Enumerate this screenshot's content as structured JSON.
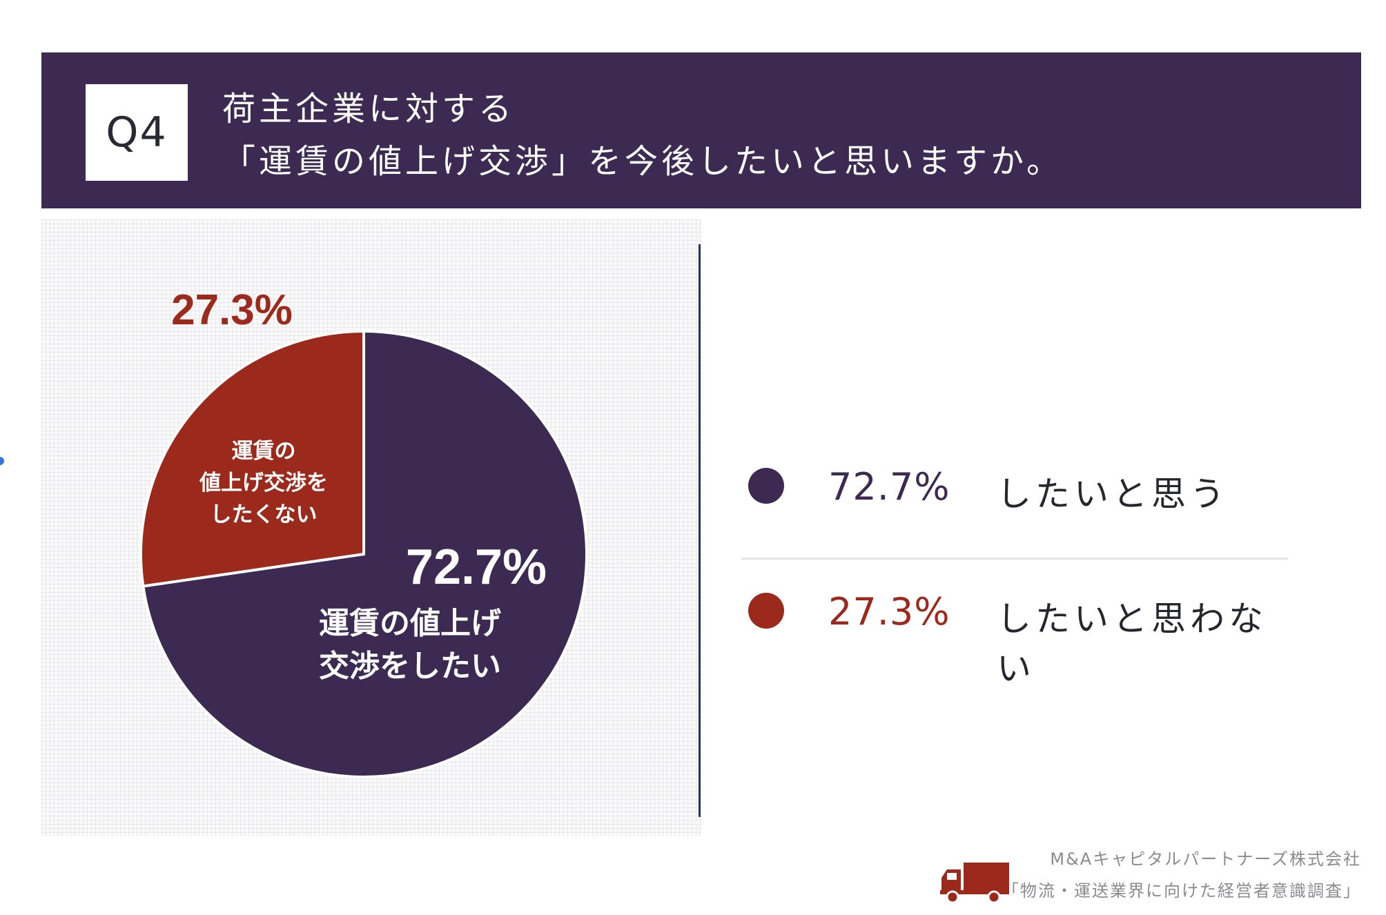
{
  "header": {
    "badge": "Q4",
    "title_line1": "荷主企業に対する",
    "title_line2": "「運賃の値上げ交渉」を今後したいと思いますか。"
  },
  "colors": {
    "header_bg": "#3c2a52",
    "series_yes": "#3c2a52",
    "series_no": "#9b2a1c"
  },
  "chart_data": {
    "type": "pie",
    "slices": [
      {
        "value": 72.7,
        "display": "72.7%",
        "inner_label": [
          "運賃の値上げ",
          "交渉をしたい"
        ],
        "color": "#3c2a52"
      },
      {
        "value": 27.3,
        "display": "27.3%",
        "inner_label": [
          "運賃の",
          "値上げ交渉を",
          "したくない"
        ],
        "color": "#9b2a1c"
      }
    ],
    "legend": [
      {
        "value": "72.7%",
        "label": "したいと思う",
        "color": "#3c2a52"
      },
      {
        "value": "27.3%",
        "label": "したいと思わない",
        "color": "#9b2a1c"
      }
    ],
    "legend_position": "right"
  },
  "footer": {
    "company": "M&Aキャピタルパートナーズ株式会社",
    "survey": "「物流・運送業界に向けた経営者意識調査」"
  },
  "icons": {
    "footer": "truck-icon"
  }
}
